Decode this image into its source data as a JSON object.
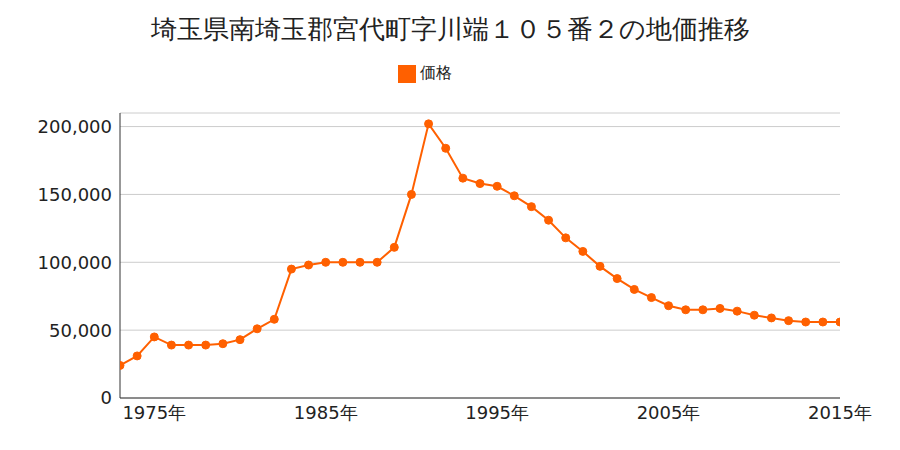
{
  "chart_data": {
    "type": "line",
    "title": "埼玉県南埼玉郡宮代町字川端１０５番２の地価推移",
    "x": [
      1973,
      1974,
      1975,
      1976,
      1977,
      1978,
      1979,
      1980,
      1981,
      1982,
      1983,
      1984,
      1985,
      1986,
      1987,
      1988,
      1989,
      1990,
      1991,
      1992,
      1993,
      1994,
      1995,
      1996,
      1997,
      1998,
      1999,
      2000,
      2001,
      2002,
      2003,
      2004,
      2005,
      2006,
      2007,
      2008,
      2009,
      2010,
      2011,
      2012,
      2013,
      2014,
      2015
    ],
    "series": [
      {
        "name": "価格",
        "color": "#ff6000",
        "marker": "circle",
        "values": [
          24000,
          31000,
          45000,
          39000,
          39000,
          39000,
          40000,
          43000,
          51000,
          58000,
          95000,
          98000,
          100000,
          100000,
          100000,
          100000,
          111000,
          150000,
          202000,
          184000,
          162000,
          158000,
          156000,
          149000,
          141000,
          131000,
          118000,
          108000,
          97000,
          88000,
          80000,
          74000,
          68000,
          65000,
          65000,
          66000,
          64000,
          61000,
          59000,
          57000,
          56000,
          56000,
          56000
        ]
      }
    ],
    "xlim": [
      1973,
      2015
    ],
    "xticks": [
      {
        "value": 1975,
        "label": "1975年"
      },
      {
        "value": 1985,
        "label": "1985年"
      },
      {
        "value": 1995,
        "label": "1995年"
      },
      {
        "value": 2005,
        "label": "2005年"
      },
      {
        "value": 2015,
        "label": "2015年"
      }
    ],
    "ylim": [
      0,
      210000
    ],
    "yticks": [
      0,
      {
        "value": 50000,
        "label": "50,000"
      },
      {
        "value": 100000,
        "label": "100,000"
      },
      {
        "value": 150000,
        "label": "150,000"
      },
      {
        "value": 200000,
        "label": "200,000"
      }
    ],
    "grid": true,
    "legend": "top"
  }
}
